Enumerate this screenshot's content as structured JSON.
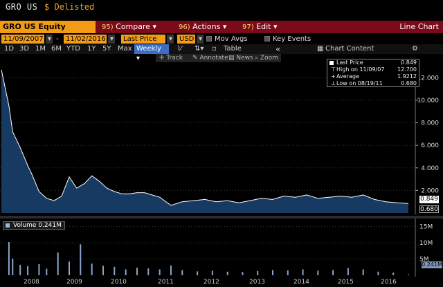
{
  "header": {
    "ticker": "GRO US",
    "status": "$ Delisted"
  },
  "menu": {
    "security": "GRO US Equity",
    "compare_num": "95)",
    "compare": "Compare",
    "actions_num": "96)",
    "actions": "Actions",
    "edit_num": "97)",
    "edit": "Edit",
    "view": "Line Chart"
  },
  "controls": {
    "start_date": "11/09/2007",
    "end_date": "11/02/2016",
    "field": "Last Price",
    "currency": "USD",
    "mov_avgs": "Mov Avgs",
    "key_events": "Key Events"
  },
  "periods": [
    "1D",
    "3D",
    "1M",
    "6M",
    "YTD",
    "1Y",
    "5Y",
    "Max"
  ],
  "frequency": "Weekly",
  "toolbar": {
    "table": "Table",
    "collapse": "«",
    "chart_content": "Chart Content",
    "track": "Track",
    "annotate": "Annotate",
    "news": "News",
    "zoom": "Zoom"
  },
  "legend": {
    "last_price_label": "Last Price",
    "last_price_value": "0.849",
    "high_label": "High on 11/09/07",
    "high_value": "12.700",
    "average_label": "Average",
    "average_value": "1.9212",
    "low_label": "Low on 08/19/11",
    "low_value": "0.680"
  },
  "volume_legend": "Volume  0.241M",
  "value_boxes": {
    "last": "0.849",
    "low": "0.680",
    "volume": "0.241M"
  },
  "colors": {
    "menu_bar": "#7b0b1a",
    "accent_orange": "#f49b16",
    "price_line": "#ffffff",
    "area_fill": "#173a63",
    "volume_bar": "#8aa7cc"
  },
  "chart_data": [
    {
      "type": "area",
      "x": [
        "2007-11",
        "2008-01",
        "2008-02",
        "2008-04",
        "2008-06",
        "2008-07",
        "2008-09",
        "2008-11",
        "2009-01",
        "2009-03",
        "2009-05",
        "2009-07",
        "2009-09",
        "2009-11",
        "2010-01",
        "2010-03",
        "2010-05",
        "2010-07",
        "2010-09",
        "2010-11",
        "2011-01",
        "2011-03",
        "2011-05",
        "2011-08",
        "2011-11",
        "2012-02",
        "2012-05",
        "2012-08",
        "2012-11",
        "2013-02",
        "2013-05",
        "2013-08",
        "2013-11",
        "2014-02",
        "2014-05",
        "2014-08",
        "2014-11",
        "2015-02",
        "2015-05",
        "2015-08",
        "2015-11",
        "2016-02",
        "2016-05",
        "2016-08",
        "2016-11"
      ],
      "values": [
        12.7,
        9.5,
        7.2,
        5.8,
        4.2,
        3.5,
        1.9,
        1.3,
        1.1,
        1.5,
        3.2,
        2.2,
        2.6,
        3.3,
        2.8,
        2.2,
        1.9,
        1.7,
        1.7,
        1.8,
        1.8,
        1.6,
        1.4,
        0.68,
        1.0,
        1.1,
        1.2,
        1.0,
        1.1,
        0.9,
        1.1,
        1.3,
        1.2,
        1.5,
        1.4,
        1.6,
        1.3,
        1.4,
        1.5,
        1.4,
        1.6,
        1.2,
        1.0,
        0.9,
        0.849
      ],
      "yticks": [
        2,
        4,
        6,
        8,
        10,
        12
      ],
      "ylim": [
        0,
        13
      ],
      "grid": true
    },
    {
      "type": "bar",
      "name": "Volume",
      "yticks": [
        "5M",
        "10M",
        "15M"
      ],
      "ylim": [
        0,
        17
      ],
      "x": [
        "2008-01",
        "2008-02",
        "2008-04",
        "2008-06",
        "2008-09",
        "2008-11",
        "2009-02",
        "2009-05",
        "2009-08",
        "2009-11",
        "2010-02",
        "2010-05",
        "2010-08",
        "2010-11",
        "2011-02",
        "2011-05",
        "2011-08",
        "2011-11",
        "2012-03",
        "2012-07",
        "2012-11",
        "2013-03",
        "2013-07",
        "2013-11",
        "2014-03",
        "2014-07",
        "2014-11",
        "2015-03",
        "2015-07",
        "2015-11",
        "2016-03",
        "2016-07",
        "2016-11"
      ],
      "values": [
        10.2,
        5.1,
        3.2,
        2.8,
        3.4,
        2.0,
        7.0,
        4.2,
        9.5,
        3.6,
        2.9,
        2.6,
        1.8,
        2.3,
        2.1,
        1.8,
        3.0,
        1.6,
        1.2,
        1.4,
        1.1,
        1.0,
        1.3,
        1.6,
        1.5,
        1.8,
        1.4,
        1.6,
        2.2,
        1.8,
        1.1,
        0.8,
        0.241
      ]
    }
  ],
  "x_axis_years": [
    "2008",
    "2009",
    "2010",
    "2011",
    "2012",
    "2013",
    "2014",
    "2015",
    "2016"
  ]
}
